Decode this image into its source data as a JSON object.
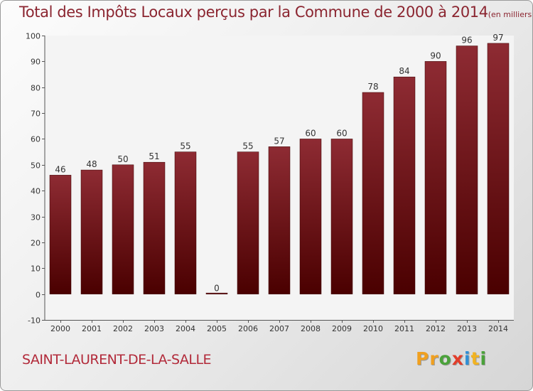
{
  "title": "Total des Impôts Locaux perçus par la Commune de 2000 à 2014",
  "unit": "(en milliers d'€)",
  "commune": "SAINT-LAURENT-DE-LA-SALLE",
  "logo": {
    "letters": [
      "P",
      "r",
      "o",
      "x",
      "i",
      "t",
      "i"
    ],
    "colors": [
      "#f0a020",
      "#f0a020",
      "#4aa23a",
      "#e23d2a",
      "#2f8fd6",
      "#f2b321",
      "#4aa23a"
    ]
  },
  "colors": {
    "bar_top": "#8e2b33",
    "bar_bottom": "#4a0000",
    "title": "#8b2530",
    "commune": "#b22a3a"
  },
  "chart_data": {
    "type": "bar",
    "title": "Total des Impôts Locaux perçus par la Commune de 2000 à 2014",
    "xlabel": "",
    "ylabel": "",
    "categories": [
      "2000",
      "2001",
      "2002",
      "2003",
      "2004",
      "2005",
      "2006",
      "2007",
      "2008",
      "2009",
      "2010",
      "2011",
      "2012",
      "2013",
      "2014"
    ],
    "values": [
      46,
      48,
      50,
      51,
      55,
      0,
      55,
      57,
      60,
      60,
      78,
      84,
      90,
      96,
      97
    ],
    "ylim": [
      -10,
      100
    ],
    "yticks": [
      -10,
      0,
      10,
      20,
      30,
      40,
      50,
      60,
      70,
      80,
      90,
      100
    ],
    "grid": false,
    "data_labels": true
  }
}
